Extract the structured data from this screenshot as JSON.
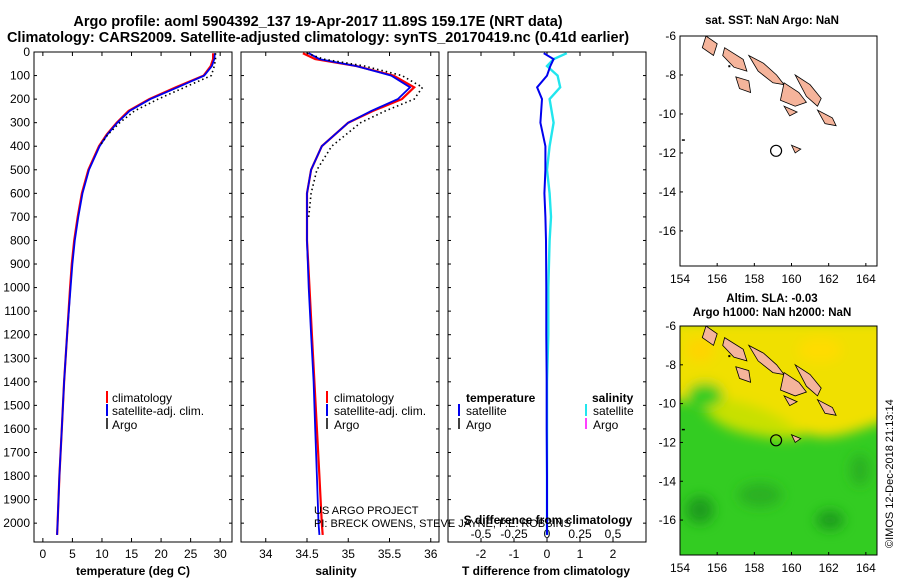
{
  "title": {
    "line1": "Argo profile: aoml 5904392_137 19-Apr-2017 11.89S 159.17E (NRT data)",
    "line2": "Climatology: CARS2009. Satellite-adjusted climatology: synTS_20170419.nc (0.41d earlier)"
  },
  "colors": {
    "climatology": "#ff0000",
    "satellite": "#0000ee",
    "argo": "#000000",
    "sat_salinity": "#22e6ee",
    "argo_salinity": "#ff00ff",
    "land": "#f5b49b",
    "sea_green": "#33cc22",
    "sea_yellow": "#f0e000"
  },
  "depth_ticks": [
    "0",
    "100",
    "200",
    "300",
    "400",
    "500",
    "600",
    "700",
    "800",
    "900",
    "1000",
    "1100",
    "1200",
    "1300",
    "1400",
    "1500",
    "1600",
    "1700",
    "1800",
    "1900",
    "2000"
  ],
  "chart_data": [
    {
      "type": "line",
      "name": "temperature",
      "xlabel": "temperature (deg C)",
      "xlim": [
        -1.5,
        32
      ],
      "xticks": [
        "0",
        "5",
        "10",
        "15",
        "20",
        "25",
        "30"
      ],
      "ylim": [
        2080,
        0
      ],
      "depth": [
        5,
        30,
        60,
        100,
        150,
        200,
        250,
        300,
        350,
        400,
        500,
        600,
        700,
        800,
        900,
        1000,
        1200,
        1400,
        1600,
        1800,
        2000,
        2050
      ],
      "series": [
        {
          "name": "climatology",
          "values": [
            28.8,
            28.8,
            28.4,
            27.2,
            22.5,
            18.0,
            14.5,
            12.5,
            10.8,
            9.5,
            7.7,
            6.6,
            5.9,
            5.3,
            4.9,
            4.6,
            4.1,
            3.6,
            3.2,
            2.8,
            2.5,
            2.4
          ]
        },
        {
          "name": "satellite-adj. clim.",
          "values": [
            29.1,
            29.0,
            28.6,
            27.3,
            22.8,
            18.2,
            14.7,
            12.6,
            10.9,
            9.6,
            7.8,
            6.7,
            6.0,
            5.4,
            5.0,
            4.7,
            4.1,
            3.6,
            3.2,
            2.8,
            2.5,
            2.4
          ]
        },
        {
          "name": "Argo",
          "values": [
            29.2,
            29.2,
            29.0,
            28.5,
            24.0,
            19.5,
            15.5,
            13.0,
            11.0,
            9.6
          ]
        }
      ],
      "legend": [
        "climatology",
        "satellite-adj. clim.",
        "Argo"
      ]
    },
    {
      "type": "line",
      "name": "salinity",
      "xlabel": "salinity",
      "xlim": [
        33.7,
        36.1
      ],
      "xticks": [
        "34",
        "34.5",
        "35",
        "35.5",
        "36"
      ],
      "ylim": [
        2080,
        0
      ],
      "depth": [
        5,
        30,
        60,
        100,
        150,
        200,
        250,
        300,
        400,
        500,
        600,
        700,
        800,
        1000,
        1200,
        1400,
        1600,
        1800,
        2000,
        2050
      ],
      "series": [
        {
          "name": "climatology",
          "values": [
            34.45,
            34.6,
            35.1,
            35.55,
            35.8,
            35.65,
            35.3,
            35.0,
            34.68,
            34.55,
            34.5,
            34.5,
            34.5,
            34.53,
            34.56,
            34.59,
            34.62,
            34.65,
            34.68,
            34.69
          ]
        },
        {
          "name": "satellite-adj. clim.",
          "values": [
            34.52,
            34.65,
            35.1,
            35.52,
            35.75,
            35.6,
            35.28,
            35.0,
            34.68,
            34.55,
            34.5,
            34.5,
            34.5,
            34.52,
            34.55,
            34.58,
            34.6,
            34.62,
            34.64,
            34.65
          ]
        },
        {
          "name": "Argo",
          "values": [
            34.5,
            34.7,
            35.2,
            35.65,
            35.9,
            35.8,
            35.45,
            35.15,
            34.8,
            34.62,
            34.55,
            34.52
          ]
        }
      ],
      "legend": [
        "climatology",
        "satellite-adj. clim.",
        "Argo"
      ],
      "credit": [
        "US ARGO PROJECT",
        "PI: BRECK OWENS, STEVE JAYNE, P.E. ROBBINS"
      ]
    },
    {
      "type": "line",
      "name": "difference from climatology",
      "xlabel": "T difference from climatology",
      "xlim": [
        -3,
        3
      ],
      "xticks": [
        "-2",
        "-1",
        "0",
        "1",
        "2"
      ],
      "xlabel_top": "S difference from climatology",
      "xticks_top": [
        "-0.5",
        "-0.25",
        "0",
        "0.25",
        "0.5"
      ],
      "ylim": [
        2080,
        0
      ],
      "depth": [
        5,
        30,
        60,
        100,
        150,
        200,
        300,
        400,
        500,
        600,
        700,
        800,
        1000,
        1200,
        1400,
        1600,
        1800,
        2000,
        2050
      ],
      "series": [
        {
          "name": "temperature satellite",
          "values": [
            -0.1,
            0.2,
            0.1,
            0.0,
            -0.3,
            -0.15,
            -0.2,
            -0.05,
            -0.05,
            -0.08,
            -0.05,
            -0.03,
            -0.02,
            -0.02,
            -0.01,
            -0.01,
            0.0,
            0.0,
            0.0
          ]
        },
        {
          "name": "salinity satellite",
          "values": [
            0.15,
            0.05,
            0.0,
            0.08,
            0.1,
            0.02,
            0.05,
            0.02,
            0.0,
            0.02,
            0.03,
            0.02,
            0.01,
            0.01,
            0.0,
            0.0,
            0.0,
            0.0,
            0.0
          ]
        }
      ],
      "legend_left_title": "temperature",
      "legend_right_title": "salinity",
      "legend_left": [
        "satellite",
        "Argo"
      ],
      "legend_right": [
        "satellite",
        "Argo"
      ]
    }
  ],
  "maps": {
    "top": {
      "title": "sat. SST: NaN Argo: NaN",
      "xticks": [
        "154",
        "156",
        "158",
        "160",
        "162",
        "164"
      ],
      "yticks": [
        "-6",
        "-8",
        "-10",
        "-12",
        "-14",
        "-16"
      ],
      "xlim": [
        154,
        164.6
      ],
      "ylim": [
        -17.8,
        -6
      ],
      "profile": {
        "lon": 159.17,
        "lat": -11.89
      }
    },
    "bottom": {
      "title1": "Altim. SLA: -0.03",
      "title2": "Argo h1000: NaN h2000: NaN",
      "xticks": [
        "154",
        "156",
        "158",
        "160",
        "162",
        "164"
      ],
      "yticks": [
        "-6",
        "-8",
        "-10",
        "-12",
        "-14",
        "-16"
      ],
      "xlim": [
        154,
        164.6
      ],
      "ylim": [
        -17.8,
        -6
      ],
      "profile": {
        "lon": 159.17,
        "lat": -11.89
      }
    }
  },
  "side_label": "©IMOS 12-Dec-2018 21:13:14"
}
